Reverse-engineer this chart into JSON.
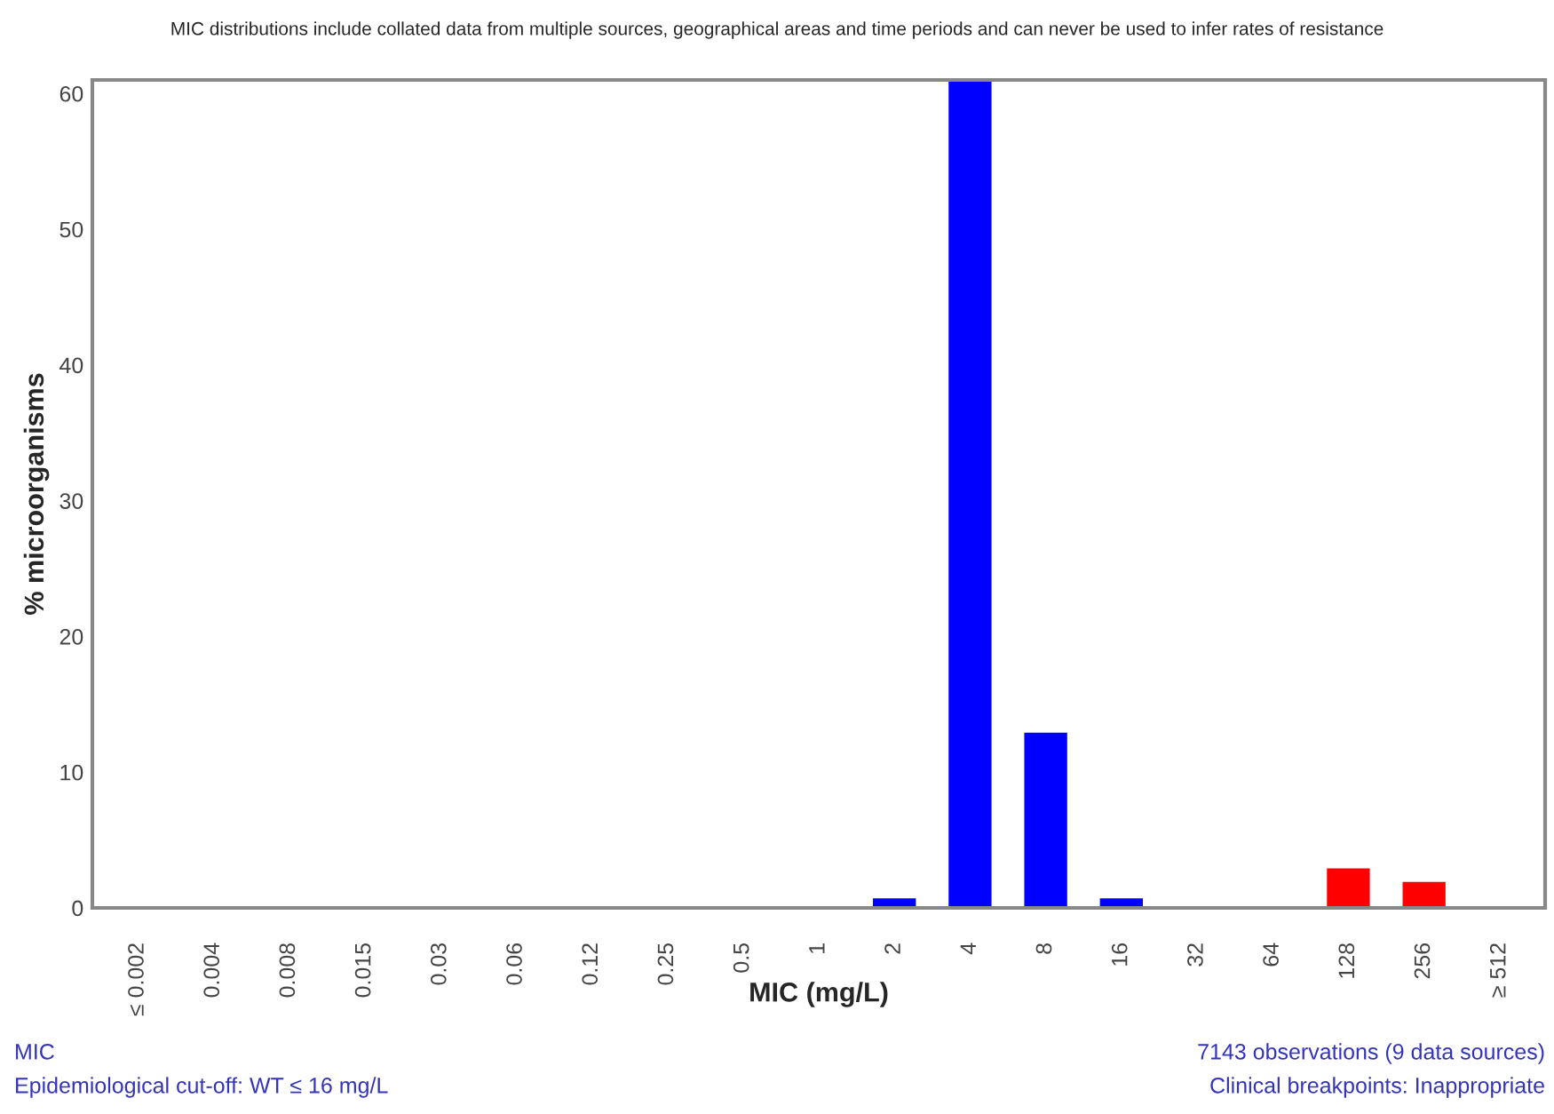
{
  "chart_data": {
    "type": "bar",
    "title": "MIC distributions include collated data from multiple sources, geographical areas and time periods and can never be used to infer rates of resistance",
    "xlabel": "MIC (mg/L)",
    "ylabel": "% microorganisms",
    "categories": [
      "≤ 0.002",
      "0.004",
      "0.008",
      "0.015",
      "0.03",
      "0.06",
      "0.12",
      "0.25",
      "0.5",
      "1",
      "2",
      "4",
      "8",
      "16",
      "32",
      "64",
      "128",
      "256",
      "≥ 512"
    ],
    "values": [
      null,
      null,
      null,
      null,
      null,
      null,
      null,
      null,
      null,
      null,
      0.8,
      61,
      13,
      0.8,
      null,
      null,
      3,
      2,
      null
    ],
    "colors": [
      null,
      null,
      null,
      null,
      null,
      null,
      null,
      null,
      null,
      null,
      "#0000ff",
      "#0000ff",
      "#0000ff",
      "#0000ff",
      null,
      null,
      "#ff0000",
      "#ff0000",
      null
    ],
    "ylim": [
      0,
      61
    ],
    "yticks": [
      0,
      10,
      20,
      30,
      40,
      50,
      60
    ],
    "grid": false,
    "legend": false,
    "annotations": [
      "MIC",
      "Epidemiological cut-off: WT ≤ 16 mg/L",
      "7143 observations (9 data sources)",
      "Clinical breakpoints: Inappropriate"
    ]
  }
}
